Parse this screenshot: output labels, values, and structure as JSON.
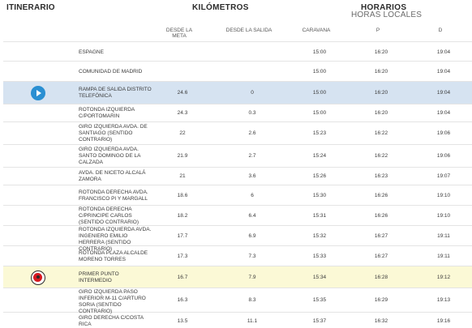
{
  "header": {
    "itinerary": "ITINERARIO",
    "kilometers": "KILÓMETROS",
    "schedule": "HORARIOS",
    "local_times": "HORAS LOCALES"
  },
  "columns": {
    "from_finish": "DESDE LA META",
    "from_start": "DESDE LA SALIDA",
    "caravan": "CARAVANA",
    "p": "P",
    "d": "D"
  },
  "rows": [
    {
      "place": "ESPAGNE",
      "from_finish": "",
      "from_start": "",
      "caravan": "15:00",
      "p": "16:20",
      "d": "19:04",
      "icon": ""
    },
    {
      "place": "COMUNIDAD DE MADRID",
      "from_finish": "",
      "from_start": "",
      "caravan": "15:00",
      "p": "16:20",
      "d": "19:04",
      "icon": ""
    },
    {
      "place": "RAMPA DE SALIDA DISTRITO TELEFÓNICA",
      "from_finish": "24.6",
      "from_start": "0",
      "caravan": "15:00",
      "p": "16:20",
      "d": "19:04",
      "icon": "play-icon"
    },
    {
      "place": "ROTONDA IZQUIERDA C/PORTOMARIN",
      "from_finish": "24.3",
      "from_start": "0.3",
      "caravan": "15:00",
      "p": "16:20",
      "d": "19:04",
      "icon": ""
    },
    {
      "place": "GIRO IZQUIERDA AVDA. DE SANTIAGO (SENTIDO CONTRARIO)",
      "from_finish": "22",
      "from_start": "2.6",
      "caravan": "15:23",
      "p": "16:22",
      "d": "19:06",
      "icon": ""
    },
    {
      "place": "GIRO IZQUIERDA AVDA. SANTO DOMINGO DE LA CALZADA",
      "from_finish": "21.9",
      "from_start": "2.7",
      "caravan": "15:24",
      "p": "16:22",
      "d": "19:06",
      "icon": ""
    },
    {
      "place": "AVDA. DE NICETO ALCALÁ ZAMORA",
      "from_finish": "21",
      "from_start": "3.6",
      "caravan": "15:26",
      "p": "16:23",
      "d": "19:07",
      "icon": ""
    },
    {
      "place": "ROTONDA DERECHA AVDA. FRANCISCO PI Y MARGALL",
      "from_finish": "18.6",
      "from_start": "6",
      "caravan": "15:30",
      "p": "16:26",
      "d": "19:10",
      "icon": ""
    },
    {
      "place": "ROTONDA DERECHA C/PRINCIPE CARLOS (SENTIDO CONTRARIO)",
      "from_finish": "18.2",
      "from_start": "6.4",
      "caravan": "15:31",
      "p": "16:26",
      "d": "19:10",
      "icon": ""
    },
    {
      "place": "ROTONDA IZQUIERDA AVDA. INGENIERO EMILIO HERRERA (SENTIDO CONTRARIO)",
      "from_finish": "17.7",
      "from_start": "6.9",
      "caravan": "15:32",
      "p": "16:27",
      "d": "19:11",
      "icon": ""
    },
    {
      "place": "ROTONDA PLAZA ALCALDE MORENO TORRES",
      "from_finish": "17.3",
      "from_start": "7.3",
      "caravan": "15:33",
      "p": "16:27",
      "d": "19:11",
      "icon": ""
    },
    {
      "place": "PRIMER PUNTO INTERMEDIO",
      "from_finish": "16.7",
      "from_start": "7.9",
      "caravan": "15:34",
      "p": "16:28",
      "d": "19:12",
      "icon": "sprint-icon"
    },
    {
      "place": "GIRO IZQUIERDA PASO INFERIOR M-11 C/ARTURO SORIA (SENTIDO CONTRARIO)",
      "from_finish": "16.3",
      "from_start": "8.3",
      "caravan": "15:35",
      "p": "16:29",
      "d": "19:13",
      "icon": ""
    },
    {
      "place": "GIRO DERECHA C/COSTA RICA",
      "from_finish": "13.5",
      "from_start": "11.1",
      "caravan": "15:37",
      "p": "16:32",
      "d": "19:16",
      "icon": ""
    }
  ]
}
